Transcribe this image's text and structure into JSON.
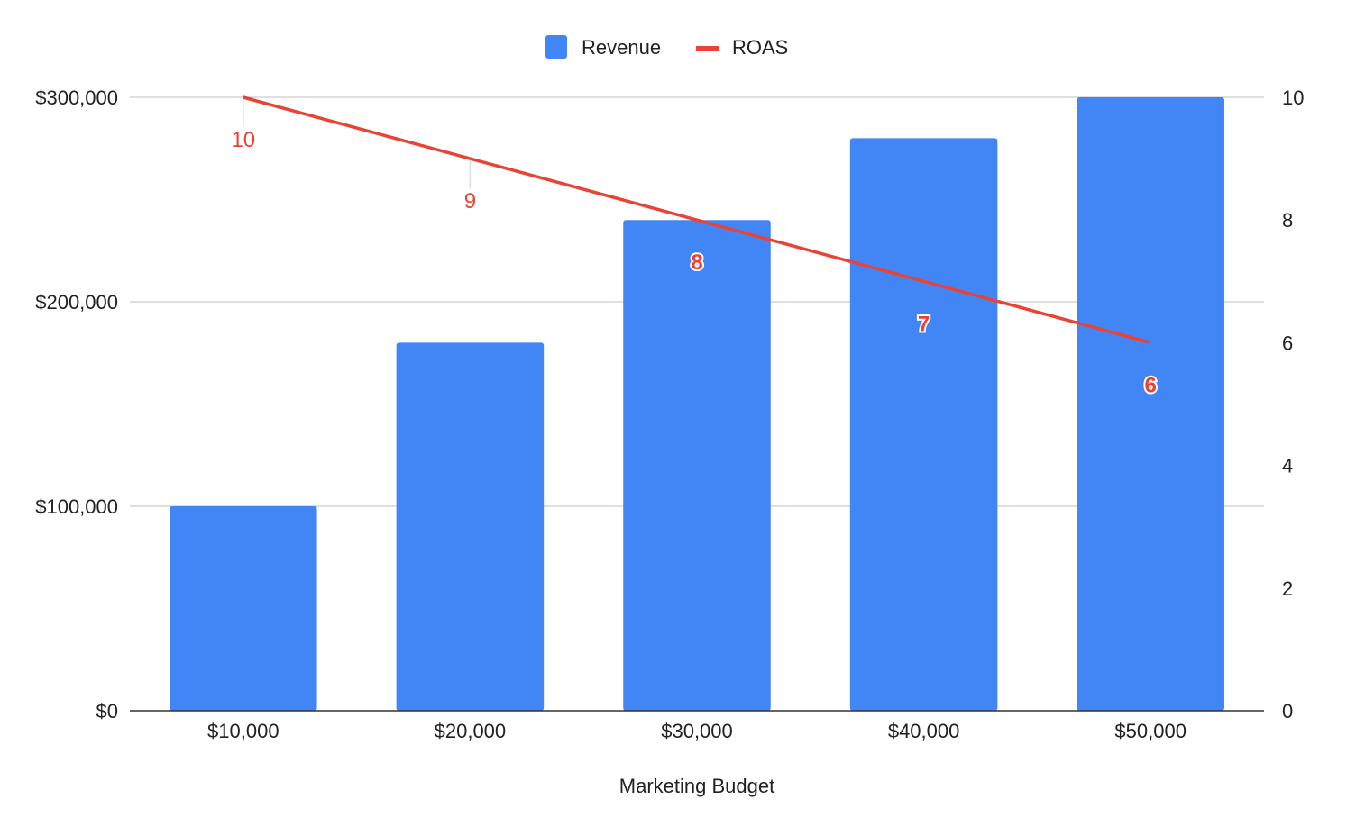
{
  "chart_data": {
    "type": "bar",
    "title": "",
    "xlabel": "Marketing Budget",
    "ylabel": "",
    "y2label": "",
    "categories": [
      "$10,000",
      "$20,000",
      "$30,000",
      "$40,000",
      "$50,000"
    ],
    "series": [
      {
        "name": "Revenue",
        "type": "bar",
        "axis": "left",
        "values": [
          100000,
          180000,
          240000,
          280000,
          300000
        ],
        "color": "#4285f4"
      },
      {
        "name": "ROAS",
        "type": "line",
        "axis": "right",
        "values": [
          10,
          9,
          8,
          7,
          6
        ],
        "color": "#ea4335",
        "data_labels": [
          "10",
          "9",
          "8",
          "7",
          "6"
        ]
      }
    ],
    "ylim": [
      0,
      300000
    ],
    "y2lim": [
      0,
      10
    ],
    "yticks": [
      0,
      100000,
      200000,
      300000
    ],
    "ytick_labels": [
      "$0",
      "$100,000",
      "$200,000",
      "$300,000"
    ],
    "y2ticks": [
      0,
      2,
      4,
      6,
      8,
      10
    ],
    "y2tick_labels": [
      "0",
      "2",
      "4",
      "6",
      "8",
      "10"
    ],
    "grid": true,
    "legend": "top-center"
  }
}
